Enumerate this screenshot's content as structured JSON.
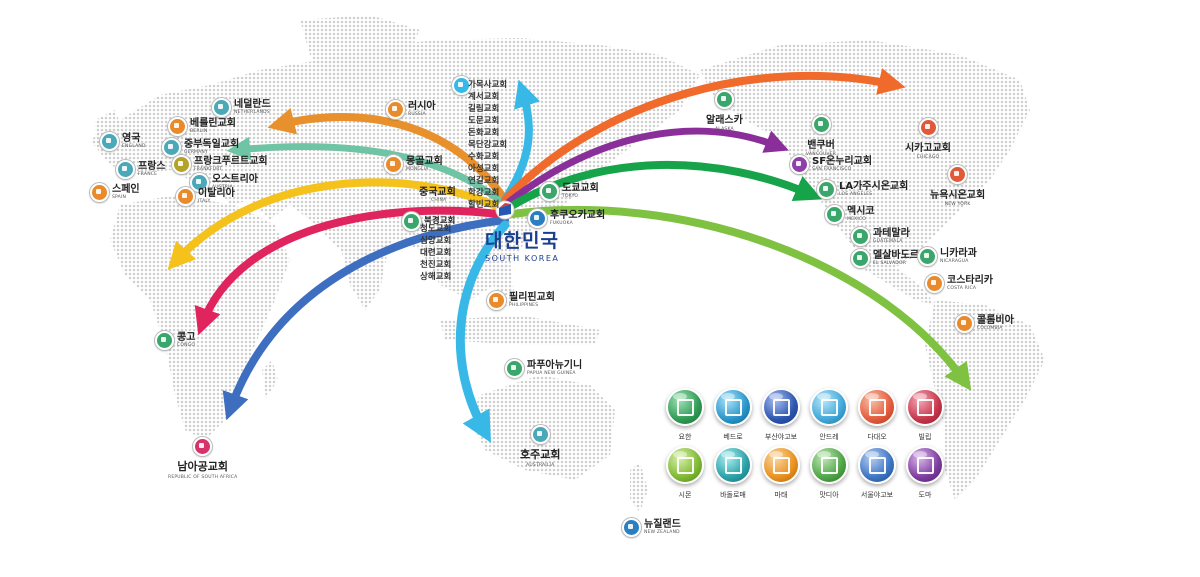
{
  "korea": {
    "name": "대한민국",
    "sub": "SOUTH KOREA"
  },
  "locations": [
    {
      "id": "england",
      "name": "영국",
      "sub": "ENGLAND",
      "color": "#4aa8b8",
      "side": "right"
    },
    {
      "id": "netherlands",
      "name": "네덜란드",
      "sub": "NETHERLANDS",
      "color": "#4aa8b8",
      "side": "right"
    },
    {
      "id": "berlin",
      "name": "베를린교회",
      "sub": "BERLIN",
      "color": "#e98a2b",
      "side": "right"
    },
    {
      "id": "germany",
      "name": "중부독일교회",
      "sub": "GERMANY",
      "color": "#4aa8b8",
      "side": "right"
    },
    {
      "id": "frankfurt",
      "name": "프랑크푸르트교회",
      "sub": "FRANKFURT",
      "color": "#b4a327",
      "side": "right"
    },
    {
      "id": "france",
      "name": "프랑스",
      "sub": "FRANCE",
      "color": "#4aa8b8",
      "side": "right"
    },
    {
      "id": "austria",
      "name": "오스트리아",
      "sub": "AUSTRIA",
      "color": "#4aa8b8",
      "side": "right"
    },
    {
      "id": "spain",
      "name": "스페인",
      "sub": "SPAIN",
      "color": "#e98a2b",
      "side": "right"
    },
    {
      "id": "italy",
      "name": "이탈리아",
      "sub": "ITALY",
      "color": "#e98a2b",
      "side": "right"
    },
    {
      "id": "russia",
      "name": "러시아",
      "sub": "RUSSIA",
      "color": "#e98a2b",
      "side": "right"
    },
    {
      "id": "mongolia",
      "name": "몽골교회",
      "sub": "MONGLIA",
      "color": "#e98a2b",
      "side": "right"
    },
    {
      "id": "china",
      "name": "중국교회",
      "sub": "CHINA",
      "color": "#e98a2b",
      "side": "none"
    },
    {
      "id": "beijing",
      "name": "북경교회",
      "sub": "",
      "color": "#3aa66b",
      "side": "right"
    },
    {
      "id": "alaska",
      "name": "알래스카",
      "sub": "ALASKA",
      "color": "#3aa66b",
      "side": "none"
    },
    {
      "id": "vancouver",
      "name": "밴쿠버",
      "sub": "VANCOUVER",
      "color": "#3aa66b",
      "side": "none"
    },
    {
      "id": "sf",
      "name": "SF온누리교회",
      "sub": "SAN FRANCISCO",
      "color": "#8e3fa8",
      "side": "right"
    },
    {
      "id": "chicago",
      "name": "시카고교회",
      "sub": "CHICAGO",
      "color": "#e05a3a",
      "side": "none"
    },
    {
      "id": "newyork",
      "name": "뉴욕시온교회",
      "sub": "NEW YORK",
      "color": "#e05a3a",
      "side": "none"
    },
    {
      "id": "la",
      "name": "LA가주시온교회",
      "sub": "LOS ANGELES",
      "color": "#3aa66b",
      "side": "right"
    },
    {
      "id": "mexico",
      "name": "멕시코",
      "sub": "MEXICO",
      "color": "#3aa66b",
      "side": "right"
    },
    {
      "id": "guatemala",
      "name": "과테말라",
      "sub": "GUATEMALA",
      "color": "#3aa66b",
      "side": "right"
    },
    {
      "id": "elsalvador",
      "name": "엘살바도르",
      "sub": "EL SALVADOR",
      "color": "#3aa66b",
      "side": "right"
    },
    {
      "id": "nicaragua",
      "name": "니카라과",
      "sub": "NICARAGUA",
      "color": "#3aa66b",
      "side": "right"
    },
    {
      "id": "costarica",
      "name": "코스타리카",
      "sub": "COSTA RICA",
      "color": "#e98a2b",
      "side": "right"
    },
    {
      "id": "colombia",
      "name": "콜롬비아",
      "sub": "COLOMBIA",
      "color": "#e98a2b",
      "side": "right"
    },
    {
      "id": "tokyo",
      "name": "도쿄교회",
      "sub": "TOKYO",
      "color": "#3aa66b",
      "side": "right"
    },
    {
      "id": "fukuoka",
      "name": "후쿠오카교회",
      "sub": "FUKUOKA",
      "color": "#2a7fc0",
      "side": "right"
    },
    {
      "id": "philippines",
      "name": "필리핀교회",
      "sub": "PHILIPPINES",
      "color": "#e98a2b",
      "side": "right"
    },
    {
      "id": "papua",
      "name": "파푸아뉴기니",
      "sub": "PAPUA NEW GUINEA",
      "color": "#3aa66b",
      "side": "right"
    },
    {
      "id": "australia",
      "name": "호주교회",
      "sub": "AUSTRAILIA",
      "color": "#4aa8b8",
      "side": "none"
    },
    {
      "id": "newzealand",
      "name": "뉴질랜드",
      "sub": "NEW ZEALAND",
      "color": "#2a7fc0",
      "side": "right"
    },
    {
      "id": "congo",
      "name": "콩고",
      "sub": "CONGO",
      "color": "#3aa66b",
      "side": "right"
    },
    {
      "id": "southafrica",
      "name": "남아공교회",
      "sub": "REPUBLIC OF SOUTH AFRICA",
      "color": "#d6336c",
      "side": "none"
    }
  ],
  "korea_churches": {
    "north": [
      "가목사교회",
      "계서교회",
      "길림교회",
      "도문교회",
      "돈화교회",
      "목단강교회",
      "수화교회",
      "아성교회",
      "연길교회",
      "학강교회",
      "할빈교회"
    ],
    "south": [
      "청도교회",
      "심양교회",
      "대련교회",
      "천진교회",
      "상해교회"
    ]
  },
  "tribes": [
    {
      "name": "요한",
      "color": "#2f9a54"
    },
    {
      "name": "베드로",
      "color": "#2794c9"
    },
    {
      "name": "부산야고보",
      "color": "#2c55b0"
    },
    {
      "name": "안드레",
      "color": "#3fa7d8"
    },
    {
      "name": "다대오",
      "color": "#e45a3b"
    },
    {
      "name": "빌립",
      "color": "#c7344a"
    },
    {
      "name": "시몬",
      "color": "#7fb833"
    },
    {
      "name": "바돌로매",
      "color": "#2aa0a6"
    },
    {
      "name": "마태",
      "color": "#e8901f"
    },
    {
      "name": "맛디아",
      "color": "#4ea447"
    },
    {
      "name": "서울야고보",
      "color": "#3c74c2"
    },
    {
      "name": "도마",
      "color": "#7c3c9e"
    }
  ],
  "arrow_colors": {
    "orange": "#e8902b",
    "teal": "#6fc4a6",
    "yellow": "#f4c21a",
    "magenta": "#e0245e",
    "blue": "#3d6ec0",
    "cyan": "#37b8e6",
    "red": "#f06a2b",
    "purple": "#8a2f9a",
    "green": "#16a34a",
    "lime": "#7fc241"
  }
}
